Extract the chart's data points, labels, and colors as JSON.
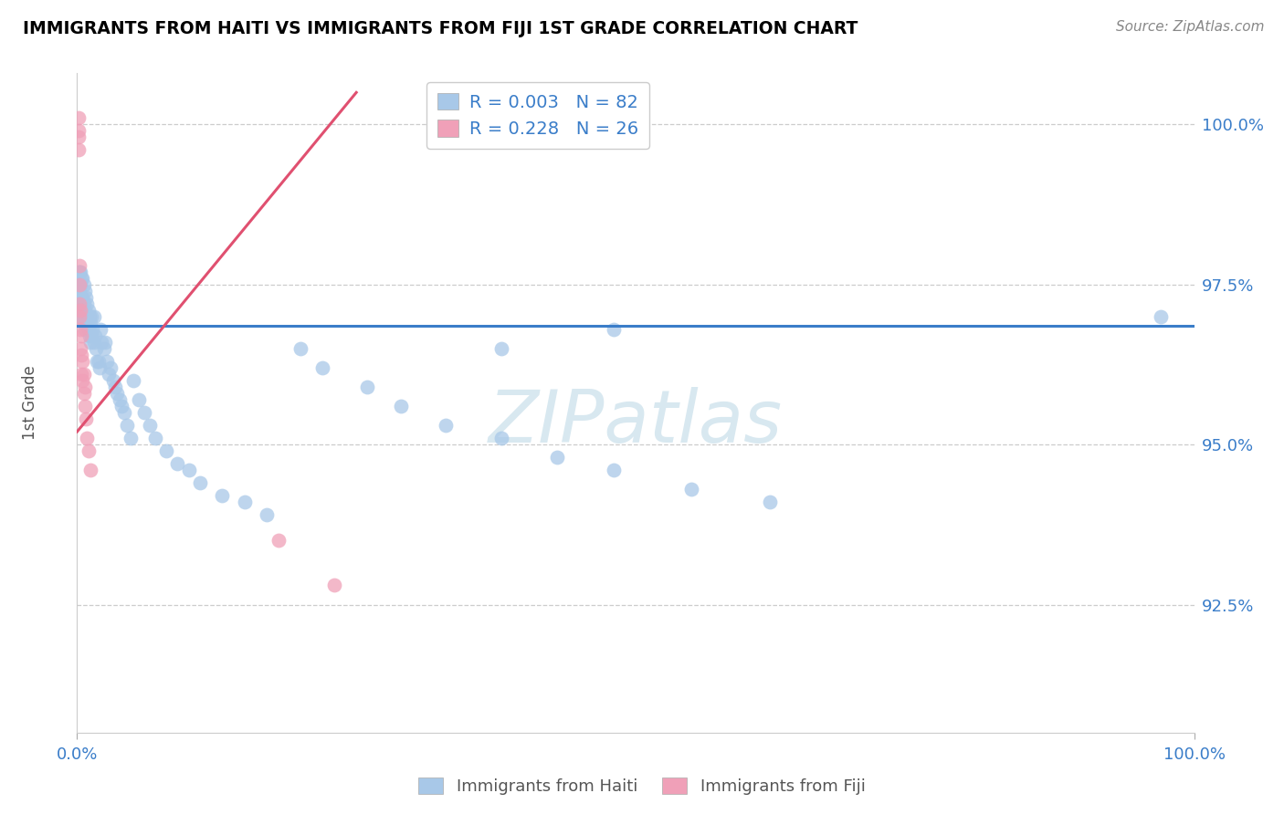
{
  "title": "IMMIGRANTS FROM HAITI VS IMMIGRANTS FROM FIJI 1ST GRADE CORRELATION CHART",
  "source": "Source: ZipAtlas.com",
  "ylabel": "1st Grade",
  "xlim": [
    0.0,
    1.0
  ],
  "ylim": [
    0.905,
    1.008
  ],
  "R_haiti": 0.003,
  "N_haiti": 82,
  "R_fiji": 0.228,
  "N_fiji": 26,
  "color_haiti": "#a8c8e8",
  "color_fiji": "#f0a0b8",
  "trendline_haiti_color": "#3a7dc9",
  "trendline_fiji_color": "#e05070",
  "watermark_color": "#d8e8f0",
  "ytick_vals": [
    0.925,
    0.95,
    0.975,
    1.0
  ],
  "ytick_labels": [
    "92.5%",
    "95.0%",
    "97.5%",
    "100.0%"
  ],
  "haiti_x": [
    0.001,
    0.001,
    0.001,
    0.002,
    0.002,
    0.002,
    0.003,
    0.003,
    0.003,
    0.003,
    0.004,
    0.004,
    0.004,
    0.005,
    0.005,
    0.005,
    0.006,
    0.006,
    0.006,
    0.007,
    0.007,
    0.007,
    0.008,
    0.008,
    0.009,
    0.009,
    0.01,
    0.01,
    0.011,
    0.011,
    0.012,
    0.012,
    0.013,
    0.013,
    0.014,
    0.015,
    0.015,
    0.016,
    0.017,
    0.018,
    0.019,
    0.02,
    0.021,
    0.022,
    0.024,
    0.025,
    0.027,
    0.028,
    0.03,
    0.032,
    0.034,
    0.036,
    0.038,
    0.04,
    0.042,
    0.045,
    0.048,
    0.05,
    0.055,
    0.06,
    0.065,
    0.07,
    0.08,
    0.09,
    0.1,
    0.11,
    0.13,
    0.15,
    0.17,
    0.2,
    0.22,
    0.26,
    0.29,
    0.33,
    0.38,
    0.43,
    0.48,
    0.55,
    0.62,
    0.48,
    0.38,
    0.97
  ],
  "haiti_y": [
    0.977,
    0.975,
    0.973,
    0.977,
    0.974,
    0.971,
    0.977,
    0.975,
    0.972,
    0.97,
    0.976,
    0.973,
    0.97,
    0.976,
    0.973,
    0.97,
    0.975,
    0.972,
    0.969,
    0.974,
    0.971,
    0.968,
    0.973,
    0.97,
    0.972,
    0.969,
    0.971,
    0.968,
    0.97,
    0.967,
    0.969,
    0.966,
    0.97,
    0.967,
    0.968,
    0.97,
    0.966,
    0.967,
    0.965,
    0.963,
    0.963,
    0.962,
    0.968,
    0.966,
    0.965,
    0.966,
    0.963,
    0.961,
    0.962,
    0.96,
    0.959,
    0.958,
    0.957,
    0.956,
    0.955,
    0.953,
    0.951,
    0.96,
    0.957,
    0.955,
    0.953,
    0.951,
    0.949,
    0.947,
    0.946,
    0.944,
    0.942,
    0.941,
    0.939,
    0.965,
    0.962,
    0.959,
    0.956,
    0.953,
    0.951,
    0.948,
    0.946,
    0.943,
    0.941,
    0.968,
    0.965,
    0.97
  ],
  "fiji_x": [
    0.001,
    0.001,
    0.001,
    0.001,
    0.002,
    0.002,
    0.002,
    0.002,
    0.003,
    0.003,
    0.003,
    0.004,
    0.004,
    0.004,
    0.005,
    0.005,
    0.006,
    0.006,
    0.007,
    0.007,
    0.008,
    0.009,
    0.01,
    0.012,
    0.18,
    0.23
  ],
  "fiji_y": [
    1.001,
    0.999,
    0.998,
    0.996,
    0.978,
    0.975,
    0.972,
    0.97,
    0.971,
    0.968,
    0.965,
    0.967,
    0.964,
    0.961,
    0.963,
    0.96,
    0.961,
    0.958,
    0.959,
    0.956,
    0.954,
    0.951,
    0.949,
    0.946,
    0.935,
    0.928
  ],
  "fiji_trendline_x": [
    0.0,
    0.25
  ],
  "fiji_trendline_y": [
    0.952,
    1.005
  ],
  "haiti_trendline_x": [
    0.0,
    1.0
  ],
  "haiti_trendline_y": [
    0.9685,
    0.9685
  ]
}
